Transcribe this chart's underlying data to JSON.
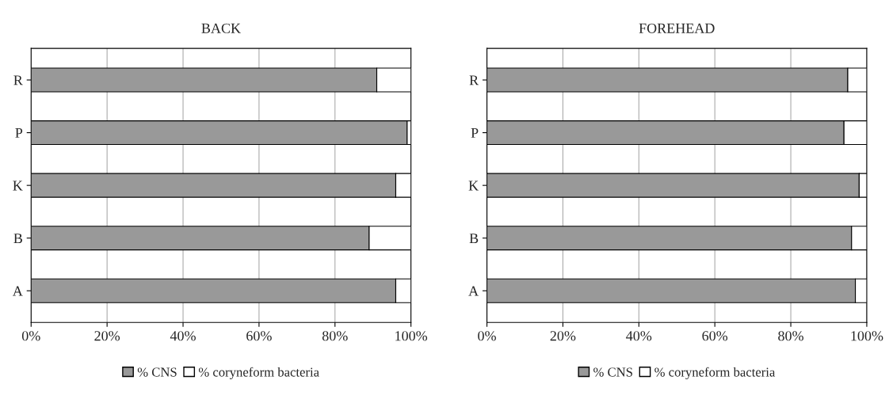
{
  "chart_data": [
    {
      "type": "bar",
      "title": "BACK",
      "orientation": "horizontal",
      "stacked": true,
      "categories": [
        "R",
        "P",
        "K",
        "B",
        "A"
      ],
      "series": [
        {
          "name": "% CNS",
          "color": "#999999",
          "values": [
            91,
            99,
            96,
            89,
            96
          ]
        },
        {
          "name": "% coryneform bacteria",
          "color": "#ffffff",
          "values": [
            9,
            1,
            4,
            11,
            4
          ]
        }
      ],
      "xlim": [
        0,
        100
      ],
      "xticks": [
        {
          "value": 0,
          "label": "0%"
        },
        {
          "value": 20,
          "label": "20%"
        },
        {
          "value": 40,
          "label": "40%"
        },
        {
          "value": 60,
          "label": "60%"
        },
        {
          "value": 80,
          "label": "80%"
        },
        {
          "value": 100,
          "label": "100%"
        }
      ],
      "grid": "x",
      "legend": "bottom"
    },
    {
      "type": "bar",
      "title": "FOREHEAD",
      "orientation": "horizontal",
      "stacked": true,
      "categories": [
        "R",
        "P",
        "K",
        "B",
        "A"
      ],
      "series": [
        {
          "name": "% CNS",
          "color": "#999999",
          "values": [
            95,
            94,
            98,
            96,
            97
          ]
        },
        {
          "name": "% coryneform bacteria",
          "color": "#ffffff",
          "values": [
            5,
            6,
            2,
            4,
            3
          ]
        }
      ],
      "xlim": [
        0,
        100
      ],
      "xticks": [
        {
          "value": 0,
          "label": "0%"
        },
        {
          "value": 20,
          "label": "20%"
        },
        {
          "value": 40,
          "label": "40%"
        },
        {
          "value": 60,
          "label": "60%"
        },
        {
          "value": 80,
          "label": "80%"
        },
        {
          "value": 100,
          "label": "100%"
        }
      ],
      "grid": "x",
      "legend": "bottom"
    }
  ]
}
